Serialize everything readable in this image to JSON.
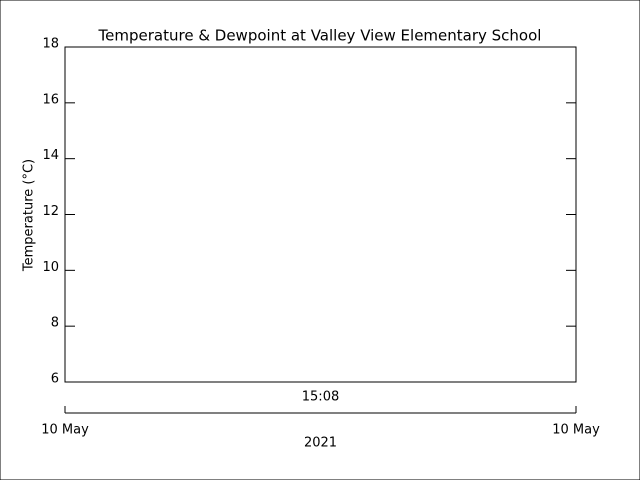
{
  "chart_data": {
    "type": "line",
    "title": "Temperature & Dewpoint at Valley View Elementary School",
    "ylabel": "Temperature (°C)",
    "ylim": [
      6,
      18
    ],
    "yticks": [
      6,
      8,
      10,
      12,
      14,
      16,
      18
    ],
    "categories": [
      "15:08"
    ],
    "series": [],
    "date_axis": {
      "ticks": [
        "10 May",
        "10 May"
      ],
      "label": "2021"
    }
  }
}
